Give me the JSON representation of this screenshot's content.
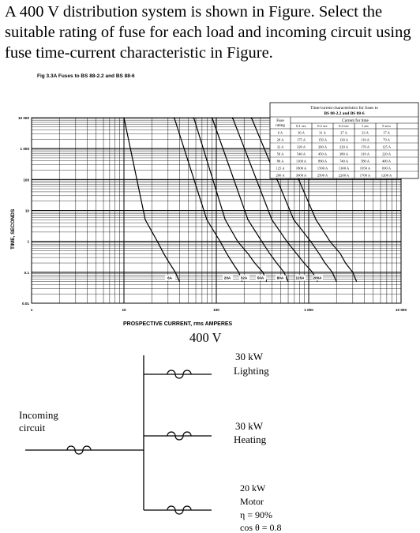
{
  "question": "A 400 V distribution system is shown in Figure. Select the suitable rating of fuse for each load and incoming circuit using fuse time-current characteristic in Figure.",
  "figure": {
    "caption": "Fig 3.3A  Fuses to BS 88-2.2 and BS 88-6",
    "ylabel": "TIME, SECONDS",
    "xlabel": "PROSPECTIVE CURRENT, rms AMPERES",
    "y_ticks": [
      "10 000",
      "1 000",
      "100",
      "10",
      "1",
      "0.1",
      "0.01"
    ],
    "x_ticks": [
      "1",
      "10",
      "100",
      "1 000",
      "10 000"
    ],
    "curve_labels": [
      "6A",
      "20A",
      "32A",
      "50A",
      "80A",
      "125A",
      "200A"
    ],
    "table": {
      "title_line1": "Time/current characteristics for fuses to",
      "title_line2": "BS 88-2.2 and BS 88-6",
      "header_rating": "Fuse rating",
      "header_group": "Current for time",
      "columns": [
        "0.1 sec",
        "0.2 sec",
        "0.4 sec",
        "1 sec",
        "5 secs"
      ],
      "rows": [
        [
          "6 A",
          "36 A",
          "31 A",
          "27 A",
          "23 A",
          "17 A"
        ],
        [
          "20 A",
          "175 A",
          "150 A",
          "130 A",
          "110 A",
          "79 A"
        ],
        [
          "32 A",
          "320 A",
          "260 A",
          "220 A",
          "170 A",
          "125 A"
        ],
        [
          "50 A",
          "540 A",
          "450 A",
          "380 A",
          "310 A",
          "220 A"
        ],
        [
          "80 A",
          "1100 A",
          "890 A",
          "740 A",
          "580 A",
          "400 A"
        ],
        [
          "125 A",
          "1800 A",
          "1500 A",
          "1300 A",
          "1050 A",
          "690 A"
        ],
        [
          "200 A",
          "3000 A",
          "2500 A",
          "2200 A",
          "1700 A",
          "1200 A"
        ]
      ]
    }
  },
  "circuit": {
    "voltage": "400 V",
    "incoming_line1": "Incoming",
    "incoming_line2": "circuit",
    "load1_line1": "30 kW",
    "load1_line2": "Lighting",
    "load2_line1": "30 kW",
    "load2_line2": "Heating",
    "load3_line1": "20 kW",
    "load3_line2": "Motor",
    "load3_line3": "η = 90%",
    "load3_line4": "cos θ = 0.8"
  },
  "chart_data": {
    "type": "line",
    "title": "Fig 3.3A  Fuses to BS 88-2.2 and BS 88-6",
    "xlabel": "PROSPECTIVE CURRENT, rms AMPERES",
    "ylabel": "TIME, SECONDS",
    "x_scale": "log",
    "y_scale": "log",
    "xlim": [
      1,
      10000
    ],
    "ylim": [
      0.01,
      10000
    ],
    "grid": true,
    "series": [
      {
        "name": "6A",
        "x": [
          10,
          17,
          23,
          27,
          31,
          36,
          40
        ],
        "y": [
          10000,
          5,
          1,
          0.4,
          0.2,
          0.1,
          0.05
        ]
      },
      {
        "name": "20A",
        "x": [
          35,
          79,
          110,
          130,
          150,
          175,
          190
        ],
        "y": [
          10000,
          5,
          1,
          0.4,
          0.2,
          0.1,
          0.05
        ]
      },
      {
        "name": "32A",
        "x": [
          57,
          125,
          170,
          220,
          260,
          320,
          350
        ],
        "y": [
          10000,
          5,
          1,
          0.4,
          0.2,
          0.1,
          0.05
        ]
      },
      {
        "name": "50A",
        "x": [
          90,
          220,
          310,
          380,
          450,
          540,
          600
        ],
        "y": [
          10000,
          5,
          1,
          0.4,
          0.2,
          0.1,
          0.05
        ]
      },
      {
        "name": "80A",
        "x": [
          150,
          400,
          580,
          740,
          890,
          1100,
          1250
        ],
        "y": [
          10000,
          5,
          1,
          0.4,
          0.2,
          0.1,
          0.05
        ]
      },
      {
        "name": "125A",
        "x": [
          240,
          690,
          1050,
          1300,
          1500,
          1800,
          2000
        ],
        "y": [
          10000,
          5,
          1,
          0.4,
          0.2,
          0.1,
          0.05
        ]
      },
      {
        "name": "200A",
        "x": [
          400,
          1200,
          1700,
          2200,
          2500,
          3000,
          3300
        ],
        "y": [
          10000,
          5,
          1,
          0.4,
          0.2,
          0.1,
          0.05
        ]
      }
    ]
  }
}
